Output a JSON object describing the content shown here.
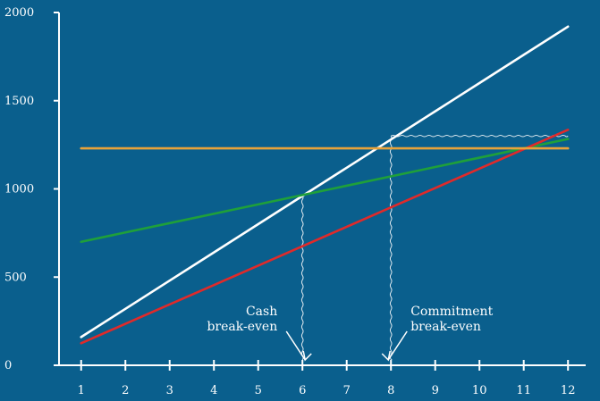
{
  "colors": {
    "background": "#0a5f8d",
    "axis": "#ffffff",
    "white_line": "#ffffff",
    "green_line": "#1fa03a",
    "red_line": "#e02a2a",
    "orange_line": "#e8a33a"
  },
  "chart_data": {
    "type": "line",
    "title": "",
    "xlabel": "",
    "ylabel": "",
    "x": [
      1,
      2,
      3,
      4,
      5,
      6,
      7,
      8,
      9,
      10,
      11,
      12
    ],
    "xlim": [
      0.5,
      12.4
    ],
    "ylim": [
      0,
      2000
    ],
    "x_ticks": [
      "1",
      "2",
      "3",
      "4",
      "5",
      "6",
      "7",
      "8",
      "9",
      "10",
      "11",
      "12"
    ],
    "y_ticks": [
      "0",
      "500",
      "1000",
      "1500",
      "2000"
    ],
    "grid": false,
    "legend": "none",
    "series": [
      {
        "key": "white",
        "color": "#ffffff",
        "values": [
          160,
          320,
          480,
          640,
          800,
          960,
          1120,
          1280,
          1440,
          1600,
          1760,
          1920
        ]
      },
      {
        "key": "green",
        "color": "#1fa03a",
        "values": [
          700,
          753,
          806,
          859,
          912,
          965,
          1018,
          1071,
          1124,
          1177,
          1230,
          1283
        ]
      },
      {
        "key": "red",
        "color": "#e02a2a",
        "values": [
          125,
          235,
          345,
          455,
          565,
          675,
          785,
          895,
          1005,
          1115,
          1225,
          1335
        ]
      },
      {
        "key": "orange",
        "color": "#e8a33a",
        "values": [
          1230,
          1230,
          1230,
          1230,
          1230,
          1230,
          1230,
          1230,
          1230,
          1230,
          1230,
          1230
        ]
      }
    ],
    "annotations": [
      {
        "lines": [
          "Cash",
          "break-even"
        ],
        "x": 6,
        "y": 965,
        "align": "right"
      },
      {
        "lines": [
          "Commitment",
          "break-even"
        ],
        "x": 8,
        "y": 1300,
        "align": "left"
      }
    ]
  }
}
